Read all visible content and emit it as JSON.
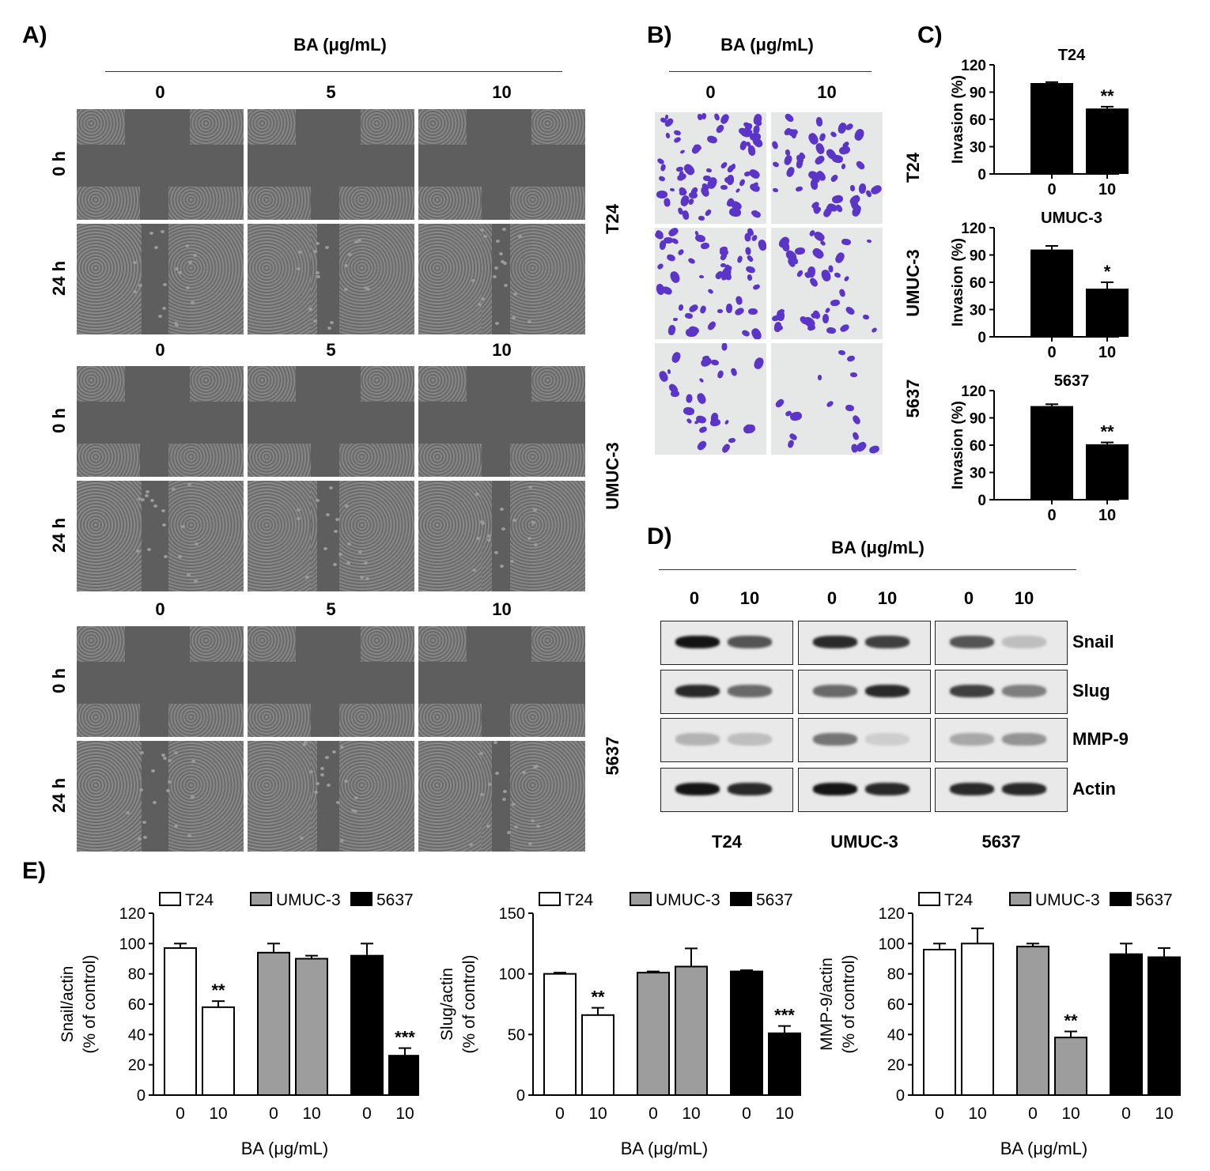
{
  "panels": {
    "a": {
      "label": "A)",
      "treatment_label": "BA (μg/mL)",
      "rows": [
        {
          "cell_line": "T24",
          "doses": [
            "0",
            "5",
            "10"
          ],
          "times": [
            "0 h",
            "24 h"
          ]
        },
        {
          "cell_line": "UMUC-3",
          "doses": [
            "0",
            "5",
            "10"
          ],
          "times": [
            "0 h",
            "24 h"
          ]
        },
        {
          "cell_line": "5637",
          "doses": [
            "0",
            "5",
            "10"
          ],
          "times": [
            "0 h",
            "24 h"
          ]
        }
      ]
    },
    "b": {
      "label": "B)",
      "treatment_label": "BA (μg/mL)",
      "doses": [
        "0",
        "10"
      ],
      "cell_lines": [
        "T24",
        "UMUC-3",
        "5637"
      ]
    },
    "c": {
      "label": "C)"
    },
    "d": {
      "label": "D)",
      "treatment_label": "BA (μg/mL)",
      "doses": [
        "0",
        "10"
      ],
      "proteins": [
        "Snail",
        "Slug",
        "MMP-9",
        "Actin"
      ],
      "cell_lines": [
        "T24",
        "UMUC-3",
        "5637"
      ]
    },
    "e": {
      "label": "E)"
    }
  },
  "colors": {
    "T24": "#ffffff",
    "UMUC-3": "#9d9d9d",
    "5637": "#000000",
    "stain": "#5a35c8",
    "micrograph": "#5e5e5e"
  },
  "chart_data": [
    {
      "type": "bar",
      "panel": "C",
      "title": "T24",
      "categories": [
        "0",
        "10"
      ],
      "values": [
        100,
        72
      ],
      "errors": [
        1,
        2
      ],
      "significance": [
        "",
        "**"
      ],
      "ylabel": "Invasion (%)",
      "ylim": [
        0,
        120
      ],
      "yticks": [
        0,
        30,
        60,
        90,
        120
      ],
      "bar_color": "#000000"
    },
    {
      "type": "bar",
      "panel": "C",
      "title": "UMUC-3",
      "categories": [
        "0",
        "10"
      ],
      "values": [
        96,
        53
      ],
      "errors": [
        4,
        7
      ],
      "significance": [
        "",
        "*"
      ],
      "ylabel": "Invasion (%)",
      "ylim": [
        0,
        120
      ],
      "yticks": [
        0,
        30,
        60,
        90,
        120
      ],
      "bar_color": "#000000"
    },
    {
      "type": "bar",
      "panel": "C",
      "title": "5637",
      "categories": [
        "0",
        "10"
      ],
      "values": [
        103,
        61
      ],
      "errors": [
        2,
        2
      ],
      "significance": [
        "",
        "**"
      ],
      "ylabel": "Invasion (%)",
      "ylim": [
        0,
        120
      ],
      "yticks": [
        0,
        30,
        60,
        90,
        120
      ],
      "bar_color": "#000000"
    },
    {
      "type": "bar",
      "panel": "E",
      "legend": "top",
      "grid": false,
      "ylabel": "Snail/actin",
      "ylabel2": "(% of control)",
      "xlabel": "BA (μg/mL)",
      "ylim": [
        0,
        120
      ],
      "yticks": [
        0,
        20,
        40,
        60,
        80,
        100,
        120
      ],
      "groups": [
        {
          "name": "T24",
          "categories": [
            "0",
            "10"
          ],
          "values": [
            97,
            58
          ],
          "errors": [
            3,
            4
          ],
          "significance": [
            "",
            "**"
          ]
        },
        {
          "name": "UMUC-3",
          "categories": [
            "0",
            "10"
          ],
          "values": [
            94,
            90
          ],
          "errors": [
            6,
            2
          ],
          "significance": [
            "",
            ""
          ]
        },
        {
          "name": "5637",
          "categories": [
            "0",
            "10"
          ],
          "values": [
            92,
            26
          ],
          "errors": [
            8,
            5
          ],
          "significance": [
            "",
            "***"
          ]
        }
      ]
    },
    {
      "type": "bar",
      "panel": "E",
      "legend": "top",
      "grid": false,
      "ylabel": "Slug/actin",
      "ylabel2": "(% of control)",
      "xlabel": "BA (μg/mL)",
      "ylim": [
        0,
        150
      ],
      "yticks": [
        0,
        50,
        100,
        150
      ],
      "groups": [
        {
          "name": "T24",
          "categories": [
            "0",
            "10"
          ],
          "values": [
            100,
            66
          ],
          "errors": [
            1,
            6
          ],
          "significance": [
            "",
            "**"
          ]
        },
        {
          "name": "UMUC-3",
          "categories": [
            "0",
            "10"
          ],
          "values": [
            101,
            106
          ],
          "errors": [
            1,
            15
          ],
          "significance": [
            "",
            ""
          ]
        },
        {
          "name": "5637",
          "categories": [
            "0",
            "10"
          ],
          "values": [
            102,
            51
          ],
          "errors": [
            1,
            6
          ],
          "significance": [
            "",
            "***"
          ]
        }
      ]
    },
    {
      "type": "bar",
      "panel": "E",
      "legend": "top",
      "grid": false,
      "ylabel": "MMP-9/actin",
      "ylabel2": "(% of control)",
      "xlabel": "BA (μg/mL)",
      "ylim": [
        0,
        120
      ],
      "yticks": [
        0,
        20,
        40,
        60,
        80,
        100,
        120
      ],
      "groups": [
        {
          "name": "T24",
          "categories": [
            "0",
            "10"
          ],
          "values": [
            96,
            100
          ],
          "errors": [
            4,
            10
          ],
          "significance": [
            "",
            ""
          ]
        },
        {
          "name": "UMUC-3",
          "categories": [
            "0",
            "10"
          ],
          "values": [
            98,
            38
          ],
          "errors": [
            2,
            4
          ],
          "significance": [
            "",
            "**"
          ]
        },
        {
          "name": "5637",
          "categories": [
            "0",
            "10"
          ],
          "values": [
            93,
            91
          ],
          "errors": [
            7,
            6
          ],
          "significance": [
            "",
            ""
          ]
        }
      ]
    }
  ]
}
